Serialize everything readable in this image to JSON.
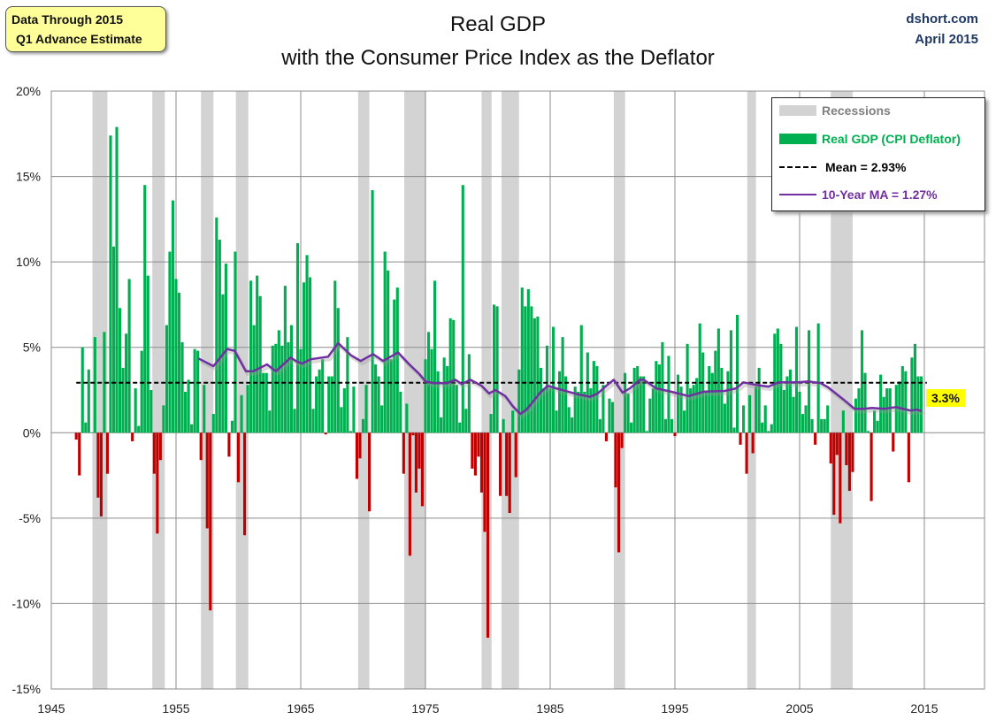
{
  "header": {
    "note_line1": "Data Through 2015",
    "note_line2": "Q1 Advance Estimate",
    "source": "dshort.com",
    "date": "April 2015"
  },
  "chart_data": {
    "type": "bar",
    "title": "Real GDP",
    "subtitle": "with the Consumer Price Index as the Deflator",
    "xlim": [
      1945,
      2019.8
    ],
    "ylim": [
      -15,
      20
    ],
    "x_ticks": [
      "1945",
      "1955",
      "1965",
      "1975",
      "1985",
      "1995",
      "2005",
      "2015"
    ],
    "y_ticks": [
      "20%",
      "15%",
      "10%",
      "5%",
      "0%",
      "-5%",
      "-10%",
      "-15%"
    ],
    "grid": true,
    "legend_placement": "top-right",
    "colors": {
      "positive": "#00b050",
      "negative": "#c00000",
      "recession": "#d3d3d3",
      "mean": "#000000",
      "ma": "#7030a0",
      "last_label_bg": "#ffff00"
    },
    "legend": {
      "recessions": "Recessions",
      "gdp": "Real GDP (CPI Deflator)",
      "mean": "Mean = 2.93%",
      "ma": "10-Year MA = 1.27%"
    },
    "mean": 2.93,
    "last_label": "3.3%",
    "bars_first_year": 1947.0,
    "bars_step_years": 0.25,
    "values": [
      -0.4,
      -2.5,
      5.0,
      0.6,
      3.7,
      0.0,
      5.6,
      -3.8,
      -4.9,
      5.9,
      -2.4,
      17.4,
      10.9,
      17.9,
      7.3,
      3.8,
      5.8,
      9.0,
      -0.5,
      2.6,
      0.4,
      4.8,
      14.5,
      9.2,
      2.5,
      -2.4,
      -5.9,
      -1.6,
      1.6,
      6.3,
      10.6,
      13.6,
      9.0,
      8.2,
      5.3,
      2.4,
      3.1,
      0.5,
      4.9,
      4.8,
      -1.6,
      2.8,
      -5.6,
      -10.4,
      1.1,
      12.6,
      11.3,
      8.1,
      9.9,
      -1.4,
      0.7,
      10.6,
      -2.9,
      2.2,
      -6.0,
      2.8,
      8.9,
      6.3,
      9.2,
      8.0,
      3.5,
      3.5,
      1.3,
      5.1,
      5.2,
      6.0,
      5.1,
      8.6,
      5.3,
      6.3,
      1.4,
      11.1,
      4.9,
      8.8,
      10.4,
      9.1,
      1.4,
      3.3,
      3.7,
      4.3,
      -0.1,
      3.3,
      3.3,
      8.9,
      7.3,
      1.5,
      2.6,
      5.6,
      0.1,
      2.7,
      -2.7,
      -1.5,
      0.8,
      2.8,
      -4.6,
      14.2,
      4.0,
      3.3,
      1.6,
      10.6,
      9.5,
      4.3,
      7.8,
      8.5,
      2.4,
      -2.4,
      1.7,
      -7.2,
      -0.15,
      -3.5,
      -2.1,
      -4.3,
      4.3,
      5.9,
      4.9,
      8.9,
      3.6,
      0.9,
      4.4,
      3.9,
      6.7,
      6.6,
      2.8,
      0.6,
      14.5,
      1.4,
      4.6,
      -2.1,
      -2.5,
      -1.4,
      -3.5,
      -5.8,
      -12.0,
      1.1,
      7.5,
      7.4,
      -3.7,
      0.8,
      -3.7,
      -4.7,
      1.3,
      -2.6,
      3.7,
      8.5,
      7.4,
      8.4,
      7.4,
      6.7,
      6.8,
      3.8,
      2.6,
      5.1,
      2.6,
      6.2,
      1.3,
      3.6,
      5.6,
      3.3,
      1.5,
      0.9,
      2.7,
      2.4,
      6.3,
      2.4,
      4.7,
      2.6,
      4.2,
      3.9,
      0.8,
      2.8,
      -0.5,
      2.0,
      1.8,
      -3.2,
      -7.0,
      -0.9,
      3.5,
      2.3,
      0.6,
      3.8,
      3.9,
      3.3,
      3.3,
      0.1,
      2.0,
      2.6,
      4.2,
      4.0,
      5.3,
      0.8,
      4.5,
      0.8,
      -0.2,
      3.4,
      2.7,
      1.3,
      5.2,
      2.6,
      2.8,
      3.2,
      6.4,
      4.7,
      2.4,
      3.9,
      3.5,
      4.8,
      6.1,
      3.8,
      1.7,
      3.6,
      6.0,
      0.3,
      6.9,
      -0.7,
      1.6,
      -2.4,
      2.2,
      -1.2,
      2.7,
      3.8,
      0.6,
      1.6,
      0.1,
      0.5,
      5.8,
      6.1,
      5.2,
      2.5,
      3.3,
      3.7,
      2.1,
      6.2,
      2.4,
      1.1,
      1.6,
      6.0,
      0.8,
      -0.7,
      6.4,
      0.8,
      0.8,
      1.6,
      -1.8,
      -4.8,
      -1.3,
      -5.3,
      1.3,
      -1.9,
      -3.4,
      -2.3,
      2.0,
      2.6,
      6.0,
      3.5,
      0.1,
      -4.0,
      1.3,
      0.7,
      3.4,
      2.1,
      2.6,
      2.6,
      -1.1,
      2.8,
      3.0,
      3.9,
      3.6,
      -2.9,
      4.4,
      5.2,
      3.3,
      3.3
    ],
    "ma_series": [
      [
        1956.8,
        4.35
      ],
      [
        1958.0,
        3.9
      ],
      [
        1959.1,
        4.9
      ],
      [
        1959.7,
        4.8
      ],
      [
        1960.6,
        3.6
      ],
      [
        1961.2,
        3.6
      ],
      [
        1962.3,
        4.0
      ],
      [
        1963.0,
        3.6
      ],
      [
        1964.2,
        4.4
      ],
      [
        1964.6,
        4.2
      ],
      [
        1965.1,
        4.05
      ],
      [
        1965.8,
        4.3
      ],
      [
        1967.2,
        4.45
      ],
      [
        1968.0,
        5.25
      ],
      [
        1969.0,
        4.55
      ],
      [
        1969.8,
        4.2
      ],
      [
        1970.8,
        4.6
      ],
      [
        1971.6,
        4.2
      ],
      [
        1972.8,
        4.7
      ],
      [
        1973.7,
        4.0
      ],
      [
        1974.5,
        3.45
      ],
      [
        1975.0,
        3.0
      ],
      [
        1975.7,
        2.9
      ],
      [
        1976.7,
        2.9
      ],
      [
        1977.4,
        3.1
      ],
      [
        1977.9,
        2.85
      ],
      [
        1978.6,
        3.1
      ],
      [
        1979.5,
        2.75
      ],
      [
        1980.1,
        2.3
      ],
      [
        1980.6,
        2.5
      ],
      [
        1981.4,
        2.15
      ],
      [
        1982.0,
        1.55
      ],
      [
        1982.6,
        1.1
      ],
      [
        1983.1,
        1.35
      ],
      [
        1983.6,
        1.8
      ],
      [
        1984.2,
        2.35
      ],
      [
        1984.8,
        2.75
      ],
      [
        1985.7,
        2.55
      ],
      [
        1987.2,
        2.25
      ],
      [
        1988.2,
        2.1
      ],
      [
        1988.8,
        2.3
      ],
      [
        1989.5,
        2.75
      ],
      [
        1990.1,
        3.1
      ],
      [
        1990.8,
        2.35
      ],
      [
        1991.4,
        2.6
      ],
      [
        1992.2,
        3.1
      ],
      [
        1992.5,
        3.1
      ],
      [
        1993.5,
        2.6
      ],
      [
        1994.7,
        2.4
      ],
      [
        1996.1,
        2.15
      ],
      [
        1997.3,
        2.4
      ],
      [
        1999.0,
        2.45
      ],
      [
        1999.9,
        2.6
      ],
      [
        2000.5,
        2.95
      ],
      [
        2001.5,
        2.8
      ],
      [
        2002.5,
        2.7
      ],
      [
        2003.3,
        2.95
      ],
      [
        2004.9,
        2.95
      ],
      [
        2005.7,
        3.0
      ],
      [
        2006.7,
        2.9
      ],
      [
        2007.3,
        2.65
      ],
      [
        2008.5,
        1.95
      ],
      [
        2009.4,
        1.4
      ],
      [
        2010.1,
        1.4
      ],
      [
        2010.8,
        1.45
      ],
      [
        2011.8,
        1.4
      ],
      [
        2012.7,
        1.5
      ],
      [
        2013.9,
        1.3
      ],
      [
        2014.4,
        1.35
      ],
      [
        2014.8,
        1.27
      ]
    ],
    "recessions": [
      [
        1948.3,
        1949.5
      ],
      [
        1953.1,
        1954.1
      ],
      [
        1957.0,
        1958.0
      ],
      [
        1959.8,
        1960.8
      ],
      [
        1969.6,
        1970.5
      ],
      [
        1973.3,
        1975.0
      ],
      [
        1979.5,
        1980.3
      ],
      [
        1981.1,
        1982.5
      ],
      [
        1990.1,
        1991.0
      ],
      [
        2000.8,
        2001.5
      ],
      [
        2007.5,
        2009.25
      ]
    ]
  }
}
